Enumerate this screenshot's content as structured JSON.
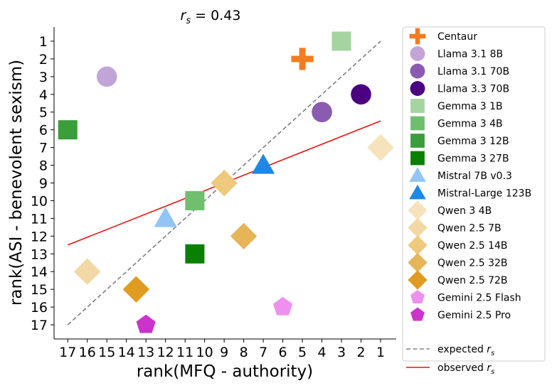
{
  "chart_data": {
    "type": "scatter",
    "title_prefix": "r",
    "title_sub": "s",
    "title_suffix": " = 0.43",
    "xlabel": "rank(MFQ - authority)",
    "ylabel": "rank(ASI - benevolent sexism)",
    "xlim": [
      17.7,
      0.2
    ],
    "ylim": [
      17.8,
      0.2
    ],
    "xticks": [
      17,
      16,
      15,
      14,
      13,
      12,
      11,
      10,
      9,
      8,
      7,
      6,
      5,
      4,
      3,
      2,
      1
    ],
    "yticks": [
      1,
      2,
      3,
      4,
      5,
      6,
      7,
      8,
      9,
      10,
      11,
      12,
      13,
      14,
      15,
      16,
      17
    ],
    "series": [
      {
        "name": "Centaur",
        "marker": "plus",
        "color": "#f47c20",
        "points": [
          [
            5,
            2
          ]
        ]
      },
      {
        "name": "Llama 3.1 8B",
        "marker": "circle",
        "color": "#c2a5d8",
        "points": [
          [
            15,
            3
          ]
        ]
      },
      {
        "name": "Llama 3.1 70B",
        "marker": "circle",
        "color": "#8a5bb0",
        "points": [
          [
            4,
            5
          ]
        ]
      },
      {
        "name": "Llama 3.3 70B",
        "marker": "circle",
        "color": "#4b0082",
        "points": [
          [
            2,
            4
          ]
        ]
      },
      {
        "name": "Gemma 3 1B",
        "marker": "square",
        "color": "#a4d4a0",
        "points": [
          [
            3,
            1
          ]
        ]
      },
      {
        "name": "Gemma 3 4B",
        "marker": "square",
        "color": "#6fbf6f",
        "points": [
          [
            10.5,
            10
          ]
        ]
      },
      {
        "name": "Gemma 3 12B",
        "marker": "square",
        "color": "#3a9e3a",
        "points": [
          [
            17,
            6
          ]
        ]
      },
      {
        "name": "Gemma 3 27B",
        "marker": "square",
        "color": "#0a8000",
        "points": [
          [
            10.5,
            13
          ]
        ]
      },
      {
        "name": "Mistral 7B v0.3",
        "marker": "triangle",
        "color": "#92c5f5",
        "points": [
          [
            12,
            11
          ]
        ]
      },
      {
        "name": "Mistral-Large 123B",
        "marker": "triangle",
        "color": "#1e88e5",
        "points": [
          [
            7,
            8
          ]
        ]
      },
      {
        "name": "Qwen 3 4B",
        "marker": "diamond",
        "color": "#f7e3bb",
        "points": [
          [
            1,
            7
          ]
        ]
      },
      {
        "name": "Qwen 2.5 7B",
        "marker": "diamond",
        "color": "#f2d8a4",
        "points": [
          [
            16,
            14
          ]
        ]
      },
      {
        "name": "Qwen 2.5 14B",
        "marker": "diamond",
        "color": "#efc97c",
        "points": [
          [
            9,
            9
          ]
        ]
      },
      {
        "name": "Qwen 2.5 32B",
        "marker": "diamond",
        "color": "#e6b558",
        "points": [
          [
            8,
            12
          ]
        ]
      },
      {
        "name": "Qwen 2.5 72B",
        "marker": "diamond",
        "color": "#e09c20",
        "points": [
          [
            13.5,
            15
          ]
        ]
      },
      {
        "name": "Gemini 2.5 Flash",
        "marker": "pentagon",
        "color": "#ee90ee",
        "points": [
          [
            6,
            16
          ]
        ]
      },
      {
        "name": "Gemini 2.5 Pro",
        "marker": "pentagon",
        "color": "#cc33cc",
        "points": [
          [
            13,
            17
          ]
        ]
      }
    ],
    "lines": [
      {
        "name": "expected",
        "style": "dashed",
        "color": "#808080",
        "from": [
          17,
          17
        ],
        "to": [
          1,
          1
        ]
      },
      {
        "name": "observed",
        "style": "solid",
        "color": "#ee1111",
        "from": [
          17,
          12.5
        ],
        "to": [
          1,
          5.5
        ]
      }
    ],
    "legend_position": "outside-right"
  }
}
